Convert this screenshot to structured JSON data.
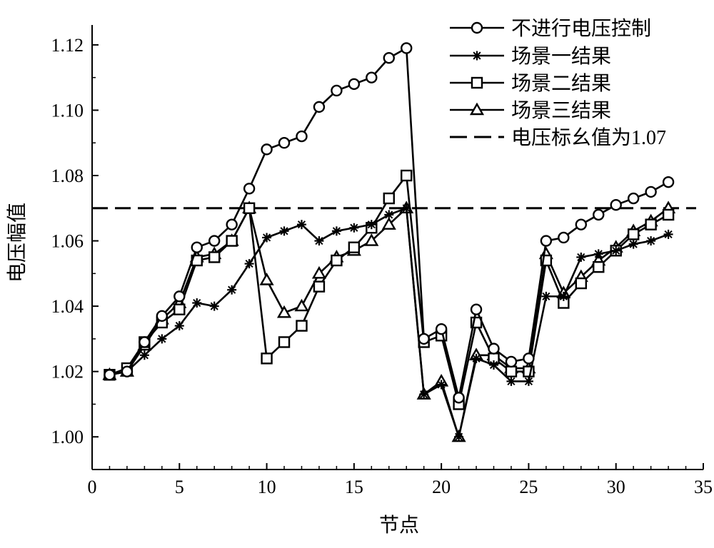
{
  "chart_data": {
    "type": "line",
    "xlabel": "节点",
    "ylabel": "电压幅值",
    "xlim": [
      0,
      35
    ],
    "ylim": [
      0.99,
      1.125
    ],
    "xticks": [
      0,
      5,
      10,
      15,
      20,
      25,
      30,
      35
    ],
    "yticks": [
      1.0,
      1.02,
      1.04,
      1.06,
      1.08,
      1.1,
      1.12
    ],
    "x": [
      1,
      2,
      3,
      4,
      5,
      6,
      7,
      8,
      9,
      10,
      11,
      12,
      13,
      14,
      15,
      16,
      17,
      18,
      19,
      20,
      21,
      22,
      23,
      24,
      25,
      26,
      27,
      28,
      29,
      30,
      31,
      32,
      33
    ],
    "series": [
      {
        "name": "不进行电压控制",
        "marker": "circle",
        "values": [
          1.019,
          1.02,
          1.029,
          1.037,
          1.043,
          1.058,
          1.06,
          1.065,
          1.076,
          1.088,
          1.09,
          1.092,
          1.101,
          1.106,
          1.108,
          1.11,
          1.116,
          1.119,
          1.03,
          1.033,
          1.012,
          1.039,
          1.027,
          1.023,
          1.024,
          1.06,
          1.061,
          1.065,
          1.068,
          1.071,
          1.073,
          1.075,
          1.078
        ]
      },
      {
        "name": "场景一结果",
        "marker": "star",
        "values": [
          1.019,
          1.02,
          1.025,
          1.03,
          1.034,
          1.041,
          1.04,
          1.045,
          1.053,
          1.061,
          1.063,
          1.065,
          1.06,
          1.063,
          1.064,
          1.065,
          1.068,
          1.07,
          1.013,
          1.016,
          1.0,
          1.024,
          1.022,
          1.017,
          1.017,
          1.043,
          1.043,
          1.055,
          1.056,
          1.057,
          1.059,
          1.06,
          1.062
        ]
      },
      {
        "name": "场景二结果",
        "marker": "square",
        "values": [
          1.019,
          1.021,
          1.029,
          1.035,
          1.039,
          1.054,
          1.055,
          1.06,
          1.07,
          1.024,
          1.029,
          1.034,
          1.046,
          1.054,
          1.058,
          1.064,
          1.073,
          1.08,
          1.029,
          1.031,
          1.01,
          1.035,
          1.024,
          1.02,
          1.02,
          1.054,
          1.041,
          1.047,
          1.052,
          1.057,
          1.062,
          1.065,
          1.068
        ]
      },
      {
        "name": "场景三结果",
        "marker": "triangle",
        "values": [
          1.019,
          1.02,
          1.028,
          1.036,
          1.041,
          1.055,
          1.056,
          1.06,
          1.07,
          1.048,
          1.038,
          1.04,
          1.05,
          1.055,
          1.057,
          1.06,
          1.065,
          1.07,
          1.013,
          1.017,
          1.0,
          1.025,
          1.025,
          1.021,
          1.021,
          1.056,
          1.044,
          1.049,
          1.054,
          1.058,
          1.063,
          1.066,
          1.07
        ]
      }
    ],
    "reference_line": {
      "name": "电压标幺值为1.07",
      "value": 1.07,
      "style": "dashed"
    },
    "legend_position": "top-right",
    "grid": false
  }
}
